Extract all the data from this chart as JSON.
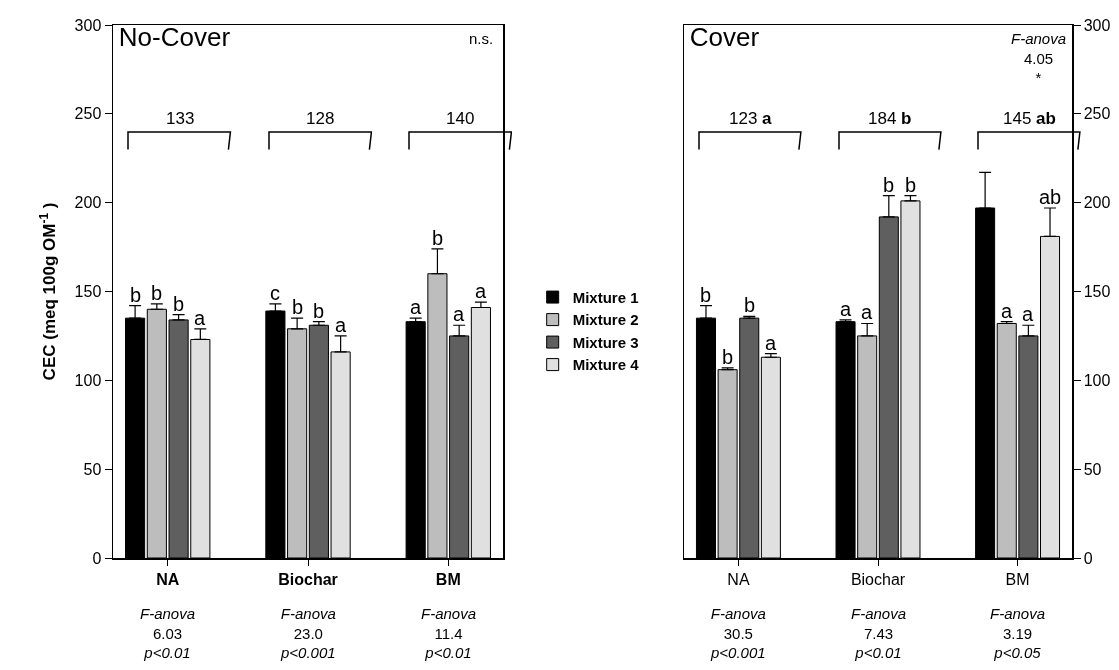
{
  "chart_data": [
    {
      "type": "bar",
      "title": "No-Cover",
      "ylabel": "CEC (meq 100g OM$^{-1}$ )",
      "categories": [
        "NA",
        "Biochar",
        "BM"
      ],
      "ylim": [
        0,
        300
      ],
      "yticks": [
        0,
        50,
        100,
        150,
        200,
        250,
        300
      ],
      "grid": false,
      "series": [
        {
          "color": "#000000",
          "values": [
            135,
            139,
            133
          ],
          "errors": [
            [
              135,
              142
            ],
            [
              139,
              143
            ],
            [
              133,
              135
            ]
          ],
          "value_labels": [
            "b",
            "c",
            "a"
          ]
        },
        {
          "color": "#bdbdbd",
          "values": [
            140,
            129,
            160
          ],
          "errors": [
            [
              140,
              143
            ],
            [
              129,
              135
            ],
            [
              160,
              174
            ]
          ],
          "value_labels": [
            "b",
            "b",
            "b"
          ]
        },
        {
          "color": "#5f5f5f",
          "values": [
            134,
            131,
            125
          ],
          "errors": [
            [
              134,
              137
            ],
            [
              131,
              133
            ],
            [
              125,
              131
            ]
          ],
          "value_labels": [
            "b",
            "b",
            "a"
          ]
        },
        {
          "color": "#e0e0e0",
          "values": [
            123,
            116,
            141
          ],
          "errors": [
            [
              123,
              129
            ],
            [
              116,
              125
            ],
            [
              141,
              144
            ]
          ],
          "value_labels": [
            "a",
            "a",
            "a"
          ]
        }
      ],
      "annotations": [
        "133",
        "128",
        "140",
        "n.s.",
        "F-anova\n6.03\np<0.01",
        "F-anova\n23.0\np<0.001",
        "F-anova\n11.4\np<0.01"
      ]
    },
    {
      "type": "bar",
      "title": "Cover",
      "categories": [
        "NA",
        "Biochar",
        "BM"
      ],
      "ylim": [
        0,
        300
      ],
      "yticks": [
        0,
        50,
        100,
        150,
        200,
        250,
        300
      ],
      "grid": false,
      "legend": "left",
      "series": [
        {
          "name": "Mixture 1",
          "color": "#000000",
          "values": [
            135,
            133,
            197
          ],
          "errors": [
            [
              135,
              142
            ],
            [
              133,
              134
            ],
            [
              197,
              217
            ]
          ],
          "value_labels": [
            "b",
            "a",
            null
          ]
        },
        {
          "name": "Mixture 2",
          "color": "#bdbdbd",
          "values": [
            106,
            125,
            132
          ],
          "errors": [
            [
              106,
              107
            ],
            [
              125,
              132
            ],
            [
              132,
              133
            ]
          ],
          "value_labels": [
            "b",
            "a",
            "a"
          ]
        },
        {
          "name": "Mixture 3",
          "color": "#5f5f5f",
          "values": [
            135,
            192,
            125
          ],
          "errors": [
            [
              135,
              136
            ],
            [
              192,
              204
            ],
            [
              125,
              131
            ]
          ],
          "value_labels": [
            "b",
            "b",
            "a"
          ]
        },
        {
          "name": "Mixture 4",
          "color": "#e0e0e0",
          "values": [
            113,
            201,
            181
          ],
          "errors": [
            [
              113,
              115
            ],
            [
              201,
              204
            ],
            [
              181,
              197
            ]
          ],
          "value_labels": [
            "a",
            "b",
            "ab"
          ]
        }
      ],
      "annotations": [
        "123 a",
        "184 b",
        "145 ab",
        "F-anova\n4.05\n*",
        "F-anova\n30.5\np<0.001",
        "F-anova\n7.43\np<0.01",
        "F-anova\n3.19\np<0.05"
      ]
    }
  ]
}
